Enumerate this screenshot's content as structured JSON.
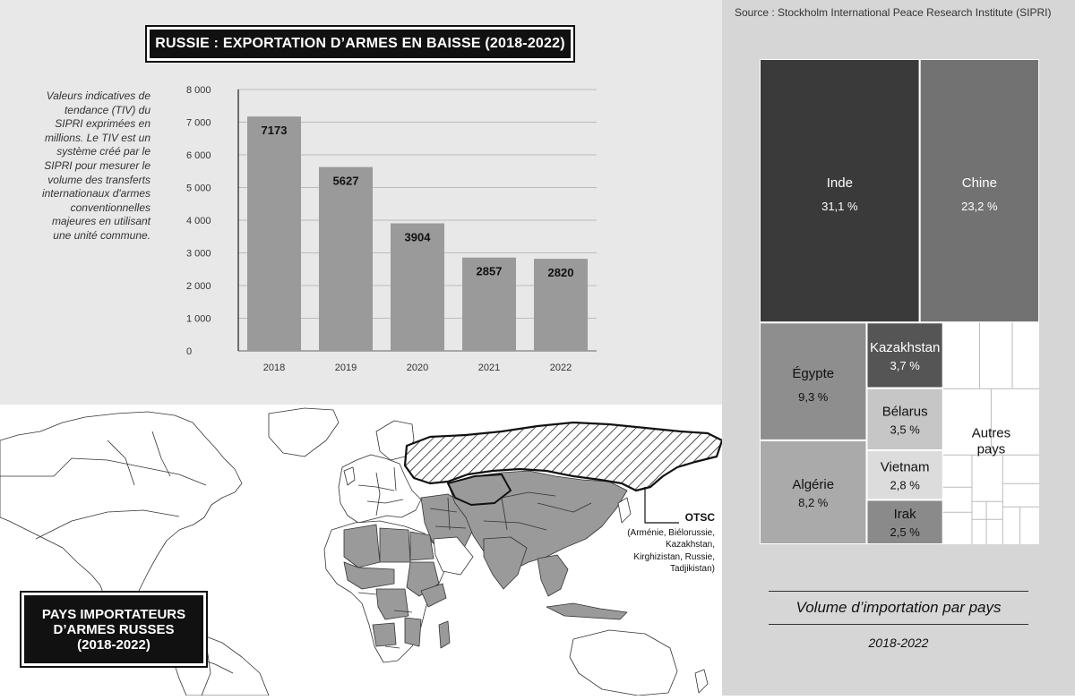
{
  "header": {
    "title": "RUSSIE : EXPORTATION D’ARMES EN BAISSE (2018-2022)"
  },
  "description": "Valeurs indicatives de tendance (TIV) du SIPRI exprimées en millions. Le TIV est un système créé par le SIPRI pour mesurer le volume des transferts internationaux d'armes conventionnelles majeures en utilisant une unité commune.",
  "source": "Source : Stockholm International Peace Research Institute (SIPRI)",
  "chart_data": [
    {
      "type": "bar",
      "title": "RUSSIE : EXPORTATION D’ARMES EN BAISSE (2018-2022)",
      "categories": [
        "2018",
        "2019",
        "2020",
        "2021",
        "2022"
      ],
      "values": [
        7173,
        5627,
        3904,
        2857,
        2820
      ],
      "value_labels": [
        "7173",
        "5627",
        "3904",
        "2857",
        "2820"
      ],
      "ylim": [
        0,
        8000
      ],
      "yticks": [
        0,
        1000,
        2000,
        3000,
        4000,
        5000,
        6000,
        7000,
        8000
      ],
      "ytick_labels": [
        "0",
        "1 000",
        "2 000",
        "3 000",
        "4 000",
        "5 000",
        "6 000",
        "7 000",
        "8 000"
      ],
      "grid": true,
      "bar_color": "#9a9a9a"
    },
    {
      "type": "treemap",
      "title": "Volume d’importation par pays",
      "subtitle": "2018-2022",
      "items": [
        {
          "label": "Inde",
          "value": 31.1,
          "pct": "31,1 %",
          "color": "#3a3a3a",
          "text_color": "#ffffff"
        },
        {
          "label": "Chine",
          "value": 23.2,
          "pct": "23,2 %",
          "color": "#727272",
          "text_color": "#ffffff"
        },
        {
          "label": "Égypte",
          "value": 9.3,
          "pct": "9,3 %",
          "color": "#8e8e8e",
          "text_color": "#111111"
        },
        {
          "label": "Algérie",
          "value": 8.2,
          "pct": "8,2 %",
          "color": "#aaaaaa",
          "text_color": "#111111"
        },
        {
          "label": "Kazakhstan",
          "value": 3.7,
          "pct": "3,7 %",
          "color": "#555555",
          "text_color": "#ffffff"
        },
        {
          "label": "Bélarus",
          "value": 3.5,
          "pct": "3,5 %",
          "color": "#c6c6c6",
          "text_color": "#111111"
        },
        {
          "label": "Vietnam",
          "value": 2.8,
          "pct": "2,8 %",
          "color": "#dcdcdc",
          "text_color": "#111111"
        },
        {
          "label": "Irak",
          "value": 2.5,
          "pct": "2,5 %",
          "color": "#8a8a8a",
          "text_color": "#111111"
        }
      ],
      "other": {
        "label": "Autres pays",
        "label_lines": [
          "Autres",
          "pays"
        ],
        "color": "#ffffff"
      }
    }
  ],
  "map": {
    "title_lines": [
      "PAYS IMPORTATEURS",
      "D’ARMES RUSSES",
      "(2018-2022)"
    ],
    "otsc_title": "OTSC",
    "otsc_lines": [
      "(Arménie, Biélorussie,",
      "Kazakhstan,",
      "Kirghizistan, Russie,",
      "Tadjikistan)"
    ],
    "colors": {
      "importer": "#9a9a9a",
      "other": "#ffffff",
      "border": "#333333"
    }
  }
}
